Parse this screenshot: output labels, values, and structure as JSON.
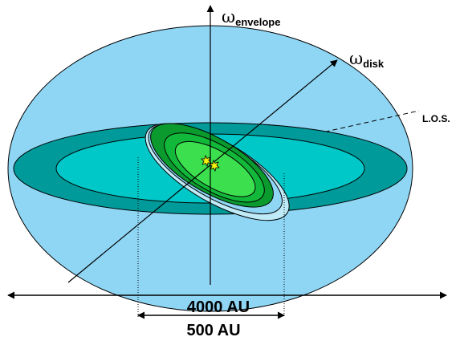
{
  "labels": {
    "omega": "ω",
    "envelope_sub": "envelope",
    "disk_sub": "disk",
    "los": "L.O.S.",
    "scale_large": "4000 AU",
    "scale_small": "500 AU"
  },
  "colors": {
    "envelope": "#8fd6f5",
    "outer_disk": "#009a9a",
    "inner_disk": "#00c8c8",
    "inner_envelope": "#bfeaf7",
    "green_dark": "#0a9a2e",
    "green_mid": "#12b83a",
    "green_bright": "#3ce04f",
    "stars": "#f2f20a"
  }
}
